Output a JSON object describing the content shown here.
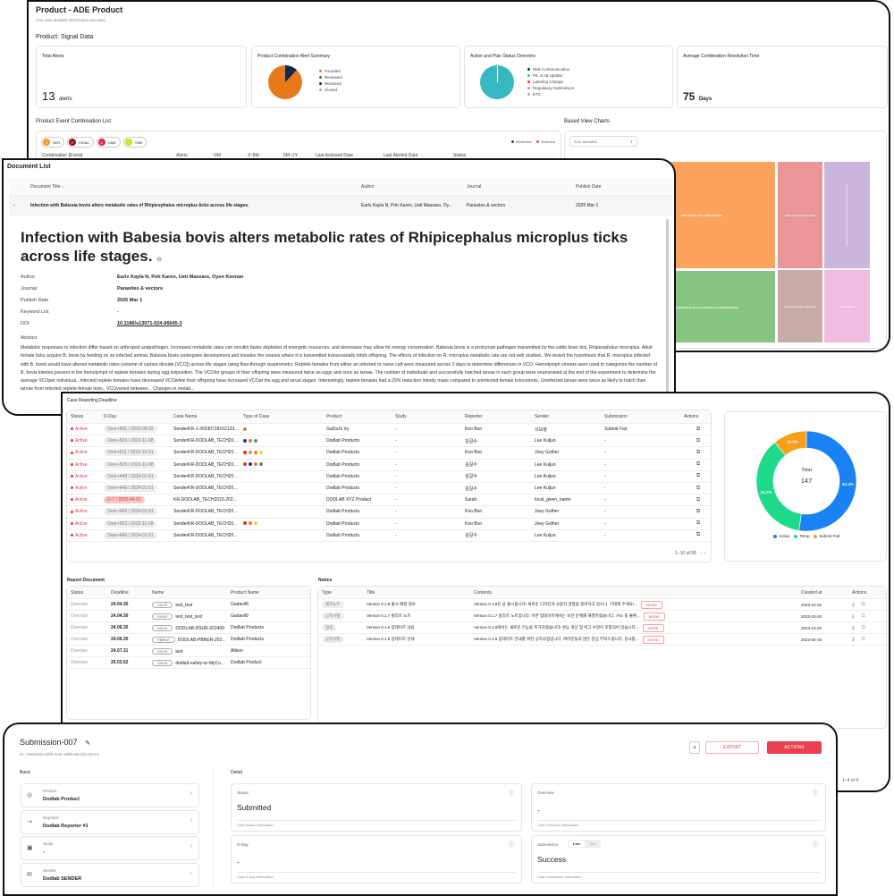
{
  "product": {
    "title": "Product - ADE Product",
    "subtitle": "Can view detailed information and data.",
    "section": "Product: Signal Data",
    "total_alerts": {
      "label": "Total Alerts",
      "value": "13",
      "unit": "alerts"
    },
    "combo_summary": {
      "title": "Product Combination Alert Summary",
      "legend": [
        {
          "label": "Founded",
          "color": "#e8791b",
          "share": 88
        },
        {
          "label": "Reviewed",
          "color": "#2e7d5b",
          "share": 0
        },
        {
          "label": "Resolved",
          "color": "#13284a",
          "share": 12
        },
        {
          "label": "Closed",
          "color": "#aaaaaa",
          "share": 0
        }
      ]
    },
    "action_status": {
      "title": "Action and Plan Status Overview",
      "legend": [
        {
          "label": "Risk Communication",
          "color": "#13284a"
        },
        {
          "label": "PIL or IB Update",
          "color": "#35b8c0"
        },
        {
          "label": "Labeling Change",
          "color": "#e8366a"
        },
        {
          "label": "Regulatory Submission",
          "color": "#e8906a"
        },
        {
          "label": "ETC",
          "color": "#aaaaaa"
        }
      ]
    },
    "avg_time": {
      "title": "Average Combination Resolution Time",
      "value": "75",
      "unit": "Days"
    },
    "event_list": {
      "title": "Product Event Combination List",
      "chips": [
        {
          "letter": "S",
          "label": "SER",
          "color": "#f39c12"
        },
        {
          "letter": "F",
          "label": "FATAL",
          "color": "#8b1a1a"
        },
        {
          "letter": "D",
          "label": "DME",
          "color": "#e0243a"
        },
        {
          "letter": "T",
          "label": "TME",
          "color": "#d4e21a"
        }
      ],
      "legend": [
        {
          "label": "Reviewed",
          "color": "#1a3e8c"
        },
        {
          "label": "Actioned",
          "color": "#e84a5f"
        }
      ],
      "columns": [
        "Combination (Event)",
        "Alerts",
        "~3M",
        "3~6M",
        "6M~1Y",
        "Last Actioned Date",
        "Last Alerted Date",
        "Status"
      ]
    },
    "based_view": {
      "title": "Based View Charts",
      "select": "SOC-MeddRA",
      "treemap": [
        {
          "label": "Infections and infestations",
          "color": "#fba35c"
        },
        {
          "label": "Injury, poisoning and procedural complications",
          "color": "#86c582"
        },
        {
          "label": "Gastrointestinal disorders",
          "color": "#ea9698"
        },
        {
          "label": "Nervous system disorders",
          "color": "#c7aba6"
        },
        {
          "label": "General disorders and administration site conditions",
          "color": "#cbb5dc"
        },
        {
          "label": "Investigations",
          "color": "#f0bce0"
        }
      ]
    }
  },
  "documents": {
    "title": "Document List",
    "columns": [
      "Document Title ↓",
      "Author",
      "Journal",
      "Publish Date"
    ],
    "row": {
      "title": "Infection with Babesia bovis alters metabolic rates of Rhipicephalus microplus ticks across life stages.",
      "author": "Earls Kayla N, Poh Karen, Ueti Massaro, Oy...",
      "journal": "Parasites & vectors",
      "date": "2025 Mar 1",
      "toggle": "−"
    },
    "detail": {
      "heading": "Infection with Babesia bovis alters metabolic rates of Rhipicephalus microplus ticks across life stages.",
      "fields": [
        {
          "label": "Author",
          "value": "Earls Kayla N, Poh Karen, Ueti Massaro, Oyen Kennan"
        },
        {
          "label": "Journal",
          "value": "Parasites & vectors"
        },
        {
          "label": "Publish Date",
          "value": "2025 Mar 1"
        },
        {
          "label": "Keyword List",
          "value": "-"
        },
        {
          "label": "DOI",
          "value": "10.1186/s13071-024-06645-3"
        }
      ],
      "abstract_label": "Abstract",
      "abstract": "Metabolic responses to infection differ based on arthropod andpathogen. Increased metabolic rates can resultin faster depletion of energetic resources, and decreases may allow for energy conservation. Babesia bovis is a protozoan pathogen transmitted by the cattle fever tick, Rhipicephalus microplus. Adult female ticks acquire B. bovis by feeding on an infected animal. Babesia bovis undergoes development and invades the ovaries where it is transmitted transovarially totick offspring. The effects of infection on R. microplus metabolic rate are not well studied., We tested the hypothesis that R. microplus infected with B. bovis would have altered metabolic rates (volume of carbon dioxide [VCO]) across life stages using flow-through respirometry. Replete females from either an infected or naïve calf were measured across 3 days to determine differences in VCO. Hemolymph smears were used to categorize the number of B. bovis kinetes present in the hemolymph of replete females during egg oviposition. The VCOfor groups of their offspring were measured twice as eggs and once as larvae. The number of individuals and successfully hatched larvae in each group were enumerated at the end of the experiment to determine the average VCOper individual., Infected replete females have decreased VCOwhile their offspring have increased VCOat the egg and larval stages. Interestingly, replete females had a 25% reduction inbody mass compared to uninfected female tickcontrols. Uninfected larvae were twice as likely to hatch than larvae from infected replete female ticks., VCOvaried between... Changes in metab..."
    }
  },
  "cases": {
    "title": "Case Reporting Deadline",
    "columns": [
      "Status",
      "D-Day",
      "Case Name",
      "Type of Case",
      "Product",
      "Study",
      "Reporter",
      "Sender",
      "Submission",
      "Actions"
    ],
    "rows": [
      {
        "status": "Active",
        "dday": "Over+601 / 2023-08-02",
        "name": "SenderKR-1-20230718152133 16",
        "types": [
          "#f0782a"
        ],
        "product": "GaDaJo inj",
        "study": "-",
        "reporter": "Koo Bon",
        "sender": "이보영",
        "submission": "Submit Fail",
        "overdue": false
      },
      {
        "status": "Active",
        "dday": "Over+503 / 2023-11-08",
        "name": "SenderKR-DODLAB_TECH2023...",
        "types": [
          "#2233aa",
          "#f0782a",
          "#3aa36a"
        ],
        "product": "Dodlab Products",
        "study": "-",
        "reporter": "김길수",
        "sender": "Lee Kuljun",
        "submission": "-",
        "overdue": false
      },
      {
        "status": "Active",
        "dday": "Over+511 / 2023-10-31",
        "name": "SenderKR-DODLAB_TECH2023...",
        "types": [
          "#e82a2a",
          "#f08070",
          "#f0782a",
          "#f5d42a"
        ],
        "product": "Dodlab Products",
        "study": "-",
        "reporter": "Koo Bon",
        "sender": "Joey Gother",
        "submission": "-",
        "overdue": false
      },
      {
        "status": "Active",
        "dday": "Over+503 / 2023-11-08",
        "name": "SenderKR-DODLAB_TECH2023...",
        "types": [
          "#e82a2a",
          "#2233aa",
          "#f0782a",
          "#3aa36a"
        ],
        "product": "Dodlab Products",
        "study": "-",
        "reporter": "김길수",
        "sender": "Lee Kuljun",
        "submission": "-",
        "overdue": false
      },
      {
        "status": "Active",
        "dday": "Over+449 / 2024-01-01",
        "name": "SenderKR-DODLAB_TECH2023...",
        "types": [],
        "product": "Dodlab Products",
        "study": "-",
        "reporter": "김길수",
        "sender": "Lee Kuljun",
        "submission": "-",
        "overdue": false
      },
      {
        "status": "Active",
        "dday": "Over+449 / 2024-01-01",
        "name": "SenderKR-DODLAB_TECH2023...",
        "types": [],
        "product": "Dodlab Products",
        "study": "-",
        "reporter": "김길수",
        "sender": "Lee Kuljun",
        "submission": "-",
        "overdue": false
      },
      {
        "status": "Active",
        "dday": "D-7 / 2025-04-01",
        "name": "KR-DODLAB_TECH2023-20240...",
        "types": [],
        "product": "DODLAB XYZ Product",
        "study": "-",
        "reporter": "Sarah",
        "sender": "local_given_name",
        "submission": "-",
        "overdue": true
      },
      {
        "status": "Active",
        "dday": "Over+449 / 2024-01-01",
        "name": "SenderKR-DODLAB_TECH2023...",
        "types": [],
        "product": "Dodlab Products",
        "study": "-",
        "reporter": "Koo Bon",
        "sender": "Joey Gother",
        "submission": "-",
        "overdue": false
      },
      {
        "status": "Active",
        "dday": "Over+503 / 2023-11-08",
        "name": "SenderKR-DODLAB_TECH2023...",
        "types": [
          "#e82a2a",
          "#f0782a",
          "#f5d42a"
        ],
        "product": "Dodlab Products",
        "study": "-",
        "reporter": "Koo Bon",
        "sender": "Joey Gother",
        "submission": "-",
        "overdue": false
      },
      {
        "status": "Active",
        "dday": "Over+449 / 2024-01-01",
        "name": "SenderKR-DODLAB_TECH2023...",
        "types": [],
        "product": "Dodlab Products",
        "study": "-",
        "reporter": "김길수",
        "sender": "Lee Kuljun",
        "submission": "-",
        "overdue": false
      }
    ],
    "pagination": "1–10 of 58",
    "donut": {
      "total_label": "Total",
      "total": "147",
      "segments": [
        {
          "label": "Active",
          "pct": 52.4,
          "color": "#1a82f5"
        },
        {
          "label": "Temp",
          "pct": 36.7,
          "color": "#1ed98a"
        },
        {
          "label": "Submit Fail",
          "pct": 10.9,
          "color": "#f8a01a"
        }
      ]
    }
  },
  "report_document": {
    "title": "Report Document",
    "columns": [
      "Status",
      "Deadline",
      "Name",
      "Product Name"
    ],
    "rows": [
      {
        "status": "Overdue",
        "deadline": "24.04.30",
        "tag": "DSUR",
        "name": "test_test",
        "product": "Gadavil9"
      },
      {
        "status": "Overdue",
        "deadline": "24.04.30",
        "tag": "DSUR",
        "name": "test_test_test",
        "product": "Gadavil9"
      },
      {
        "status": "Overdue",
        "deadline": "24.06.30",
        "tag": "DSUR",
        "name": "DODLAB-DSUR-202409",
        "product": "Dodlab Products"
      },
      {
        "status": "Overdue",
        "deadline": "24.06.30",
        "tag": "PBRER",
        "name": "DODLAB-PBRER-202409",
        "product": "Dodlab Products"
      },
      {
        "status": "Overdue",
        "deadline": "24.07.31",
        "tag": "DSUR",
        "name": "test",
        "product": "Albion"
      },
      {
        "status": "Overdue",
        "deadline": "25.03.02",
        "tag": "DSUR",
        "name": "dodlab-safety-to-MyCompany",
        "product": "Dodlab Product"
      }
    ]
  },
  "notice": {
    "title": "Notice",
    "columns": [
      "Type",
      "Title",
      "Contents",
      "Created at",
      "Actions"
    ],
    "more": "MORE",
    "rows": [
      {
        "type": "패치노트",
        "title": "Version 0.1.8 출시 예정 정보",
        "contents": "Version 0.1.8은 곧 출시됩니다! 새로운 디자인과 사용자 경험을 준비하고 있으니, 기대해 주세요!...",
        "date": "2023-10-20"
      },
      {
        "type": "공지사항",
        "title": "Version 0.1.7 릴리즈 노트",
        "contents": "Version 0.1.7 릴리즈 노트입니다. 이번 업데이트에서는 보안 문제를 해결하였습니다. 사소 중 불편...",
        "date": "2023-10-20"
      },
      {
        "type": "점검",
        "title": "Version 0.1.6 업데이트 내용",
        "contents": "Version 0.1.6에서는 새로운 기능을 추가하였습니다! 성능 개선 및 버그 수정이 포함되어 있습니다...",
        "date": "2023-10-20"
      },
      {
        "type": "공지사항",
        "title": "Version 0.1.5 업데이트 안내",
        "contents": "Version 0.1.5 업데이트 안내를 위한 공지사항입니다. 여러분들의 많은 관심 부탁드립니다. 감사합...",
        "date": "2023-06-19"
      }
    ],
    "pagination": "1–4 of 4"
  },
  "submission": {
    "title": "Submission-007",
    "id": "ID: 1ea93260-d4fb-4e6c-a9f8-09cdcf125718",
    "export": "EXPORT",
    "actions": "ACTIONS",
    "accent": "#e8404f",
    "basic_label": "Basic",
    "detail_label": "Detail",
    "basic": [
      {
        "label": "Product",
        "value": "Dodlab Product",
        "icon": "product-icon"
      },
      {
        "label": "Reporter",
        "value": "Dodlab Reporter #1",
        "icon": "reporter-icon"
      },
      {
        "label": "Study",
        "value": "-",
        "icon": "study-icon"
      },
      {
        "label": "Sender",
        "value": "Dodlab SENDER",
        "icon": "sender-icon"
      }
    ],
    "detail": [
      {
        "label": "Status",
        "value": "Submitted",
        "caption": "Case Status Information"
      },
      {
        "label": "Overview",
        "value": "-",
        "caption": "Case Overview Information"
      },
      {
        "label": "D-Day",
        "value": "-",
        "caption": "Case D-Day Information"
      },
      {
        "label": "Submission",
        "value": "Success",
        "caption": "Case Submission Information",
        "toggle": [
          "Live",
          "Test"
        ],
        "toggle_selected": "Live"
      }
    ]
  }
}
